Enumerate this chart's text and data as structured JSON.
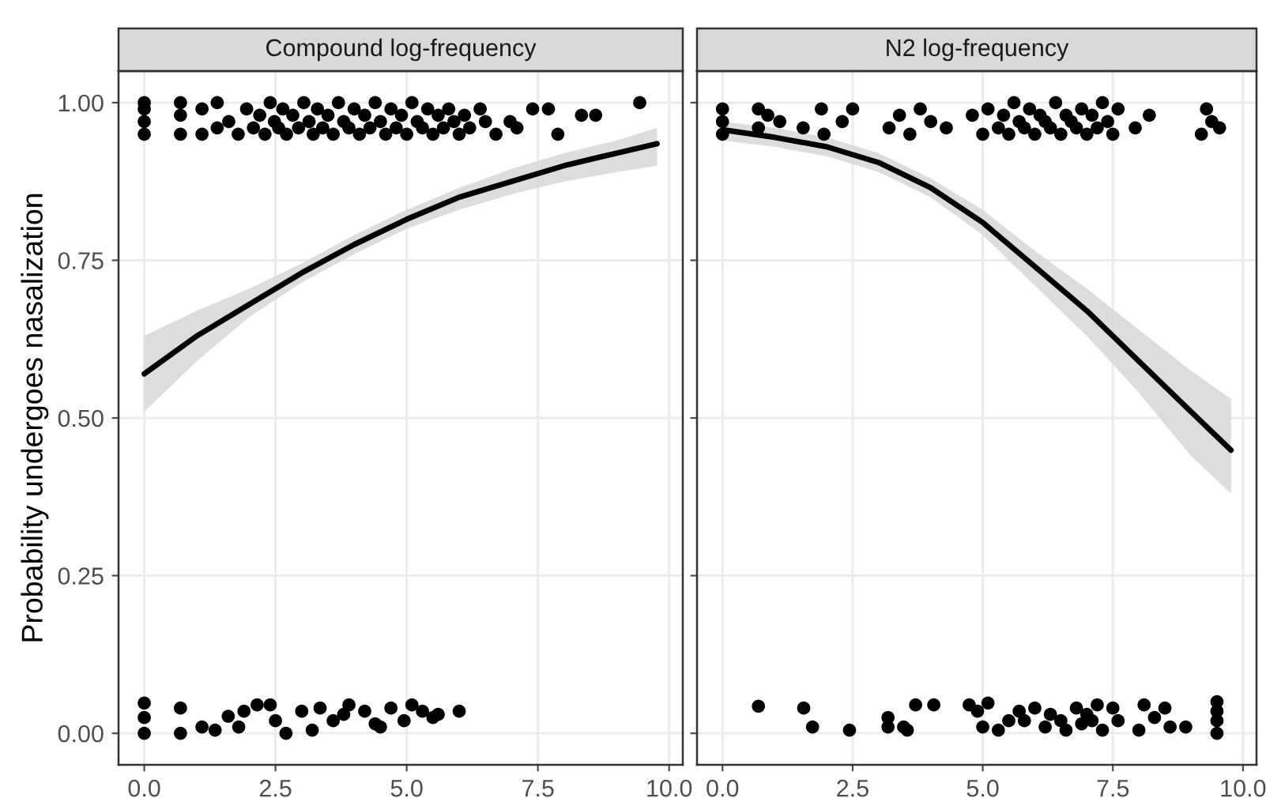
{
  "chart_data": [
    {
      "type": "scatter",
      "title": "Compound log-frequency",
      "ylabel": "Probability undergoes nasalization",
      "xlim": [
        -0.49,
        10.26
      ],
      "ylim": [
        -0.05,
        1.05
      ],
      "xticks": [
        {
          "value": 0,
          "label": "0.0"
        },
        {
          "value": 2.5,
          "label": "2.5"
        },
        {
          "value": 5,
          "label": "5.0"
        },
        {
          "value": 7.5,
          "label": "7.5"
        },
        {
          "value": 10,
          "label": "10.0"
        }
      ],
      "yticks": [
        {
          "value": 0,
          "label": "0.00"
        },
        {
          "value": 0.25,
          "label": "0.25"
        },
        {
          "value": 0.5,
          "label": "0.50"
        },
        {
          "value": 0.75,
          "label": "0.75"
        },
        {
          "value": 1,
          "label": "1.00"
        }
      ],
      "grid": true,
      "series": [
        {
          "marker": "circle",
          "color": "#000000",
          "x": [
            0,
            0,
            0,
            0,
            0.69,
            0.69,
            0.69,
            1.1,
            1.1,
            1.39,
            1.39,
            1.61,
            1.79,
            1.95,
            2.08,
            2.2,
            2.3,
            2.4,
            2.48,
            2.56,
            2.64,
            2.71,
            2.83,
            2.94,
            3.04,
            3.14,
            3.22,
            3.3,
            3.4,
            3.5,
            3.6,
            3.7,
            3.8,
            3.9,
            4.0,
            4.1,
            4.2,
            4.3,
            4.4,
            4.5,
            4.6,
            4.7,
            4.8,
            4.9,
            5.0,
            5.1,
            5.2,
            5.3,
            5.4,
            5.5,
            5.6,
            5.7,
            5.8,
            5.9,
            6.0,
            6.1,
            6.2,
            6.4,
            6.5,
            6.7,
            6.97,
            7.1,
            7.4,
            7.7,
            7.88,
            8.33,
            8.6,
            9.44,
            0,
            0,
            0,
            0.69,
            0.69,
            1.1,
            1.35,
            1.6,
            1.9,
            2.15,
            2.4,
            2.7,
            3.0,
            3.35,
            3.6,
            3.9,
            4.2,
            4.4,
            4.7,
            4.95,
            5.1,
            5.3,
            5.5,
            5.6,
            6.0,
            1.8,
            2.5,
            3.2,
            3.8,
            4.5
          ],
          "values": [
            0.95,
            0.97,
            0.99,
            1.0,
            0.95,
            0.98,
            1.0,
            0.95,
            0.99,
            0.96,
            1.0,
            0.97,
            0.95,
            0.99,
            0.96,
            0.98,
            0.95,
            1.0,
            0.97,
            0.96,
            0.99,
            0.95,
            0.98,
            0.96,
            1.0,
            0.97,
            0.95,
            0.99,
            0.96,
            0.98,
            0.95,
            1.0,
            0.97,
            0.96,
            0.99,
            0.95,
            0.98,
            0.96,
            1.0,
            0.97,
            0.95,
            0.99,
            0.96,
            0.98,
            0.95,
            1.0,
            0.97,
            0.96,
            0.99,
            0.95,
            0.98,
            0.96,
            0.99,
            0.97,
            0.95,
            0.98,
            0.96,
            0.99,
            0.97,
            0.95,
            0.97,
            0.96,
            0.99,
            0.99,
            0.95,
            0.98,
            0.98,
            1.0,
            0.0,
            0.025,
            0.048,
            0.04,
            0.0,
            0.01,
            0.005,
            0.027,
            0.035,
            0.045,
            0.045,
            0.0,
            0.035,
            0.04,
            0.02,
            0.045,
            0.035,
            0.015,
            0.04,
            0.02,
            0.045,
            0.035,
            0.025,
            0.03,
            0.035,
            0.01,
            0.02,
            0.005,
            0.03,
            0.01
          ]
        },
        {
          "type": "line",
          "marker": "none",
          "line_style": "solid",
          "color": "#000000",
          "x": [
            0,
            1,
            2,
            3,
            4,
            5,
            6,
            7,
            8,
            9,
            9.77
          ],
          "values": [
            0.57,
            0.63,
            0.68,
            0.73,
            0.775,
            0.815,
            0.85,
            0.875,
            0.9,
            0.92,
            0.935
          ],
          "lower": [
            0.51,
            0.59,
            0.66,
            0.715,
            0.76,
            0.8,
            0.83,
            0.855,
            0.875,
            0.89,
            0.9
          ],
          "upper": [
            0.63,
            0.67,
            0.705,
            0.745,
            0.79,
            0.83,
            0.865,
            0.895,
            0.92,
            0.94,
            0.96
          ]
        }
      ]
    },
    {
      "type": "scatter",
      "title": "N2 log-frequency",
      "xlim": [
        -0.49,
        10.26
      ],
      "ylim": [
        -0.05,
        1.05
      ],
      "xticks": [
        {
          "value": 0,
          "label": "0.0"
        },
        {
          "value": 2.5,
          "label": "2.5"
        },
        {
          "value": 5,
          "label": "5.0"
        },
        {
          "value": 7.5,
          "label": "7.5"
        },
        {
          "value": 10,
          "label": "10.0"
        }
      ],
      "yticks": [
        {
          "value": 0,
          "label": null
        },
        {
          "value": 0.25,
          "label": null
        },
        {
          "value": 0.5,
          "label": null
        },
        {
          "value": 0.75,
          "label": null
        },
        {
          "value": 1,
          "label": null
        }
      ],
      "tick_labels": "x",
      "grid": true,
      "series": [
        {
          "marker": "circle",
          "color": "#000000",
          "x": [
            0,
            0,
            0,
            0.69,
            0.69,
            0.87,
            1.1,
            1.55,
            1.9,
            1.95,
            2.3,
            2.5,
            3.2,
            3.4,
            3.6,
            3.8,
            4.0,
            4.3,
            4.8,
            5.0,
            5.1,
            5.3,
            5.4,
            5.5,
            5.6,
            5.7,
            5.8,
            5.9,
            6.0,
            6.1,
            6.2,
            6.3,
            6.4,
            6.5,
            6.6,
            6.7,
            6.8,
            6.9,
            7.0,
            7.1,
            7.2,
            7.3,
            7.4,
            7.5,
            7.6,
            7.93,
            8.2,
            9.2,
            9.3,
            9.4,
            9.55,
            0.69,
            1.56,
            1.73,
            2.44,
            3.18,
            3.18,
            3.48,
            3.55,
            3.71,
            4.06,
            4.74,
            4.9,
            5.1,
            5.0,
            5.3,
            5.5,
            5.7,
            5.8,
            6.0,
            6.2,
            6.3,
            6.5,
            6.6,
            6.8,
            6.9,
            7.0,
            7.1,
            7.2,
            7.3,
            7.5,
            7.6,
            8.0,
            8.1,
            8.3,
            8.5,
            8.6,
            8.9,
            9.5,
            9.5,
            9.5,
            9.5
          ],
          "values": [
            0.95,
            0.97,
            0.99,
            0.96,
            0.99,
            0.98,
            0.97,
            0.96,
            0.99,
            0.95,
            0.97,
            0.99,
            0.96,
            0.98,
            0.95,
            0.99,
            0.97,
            0.96,
            0.98,
            0.95,
            0.99,
            0.96,
            0.98,
            0.95,
            1.0,
            0.97,
            0.96,
            0.99,
            0.95,
            0.98,
            0.97,
            0.96,
            1.0,
            0.95,
            0.98,
            0.97,
            0.96,
            0.99,
            0.95,
            0.98,
            0.96,
            1.0,
            0.97,
            0.95,
            0.99,
            0.96,
            0.98,
            0.95,
            0.99,
            0.97,
            0.96,
            0.043,
            0.04,
            0.01,
            0.005,
            0.025,
            0.01,
            0.01,
            0.005,
            0.045,
            0.045,
            0.045,
            0.035,
            0.048,
            0.01,
            0.005,
            0.02,
            0.035,
            0.02,
            0.04,
            0.01,
            0.03,
            0.02,
            0.005,
            0.04,
            0.015,
            0.03,
            0.02,
            0.045,
            0.005,
            0.04,
            0.02,
            0.005,
            0.045,
            0.025,
            0.04,
            0.01,
            0.01,
            0.0,
            0.02,
            0.035,
            0.05
          ]
        },
        {
          "type": "line",
          "marker": "none",
          "line_style": "solid",
          "color": "#000000",
          "x": [
            0,
            1,
            2,
            3,
            4,
            5,
            6,
            7,
            8,
            9,
            9.77
          ],
          "values": [
            0.957,
            0.945,
            0.93,
            0.905,
            0.865,
            0.81,
            0.74,
            0.67,
            0.59,
            0.51,
            0.449
          ],
          "lower": [
            0.94,
            0.93,
            0.915,
            0.89,
            0.85,
            0.79,
            0.71,
            0.63,
            0.54,
            0.44,
            0.38
          ],
          "upper": [
            0.97,
            0.96,
            0.945,
            0.92,
            0.88,
            0.83,
            0.765,
            0.705,
            0.64,
            0.575,
            0.53
          ]
        }
      ]
    }
  ]
}
